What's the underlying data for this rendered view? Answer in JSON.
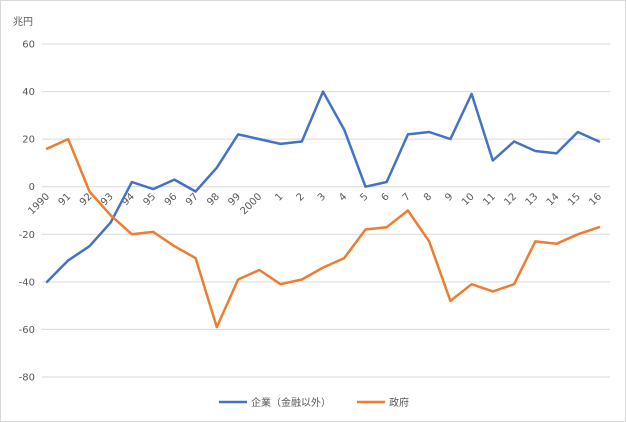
{
  "chart_data": {
    "type": "line",
    "ylabel": "兆円",
    "ylim": [
      -80,
      60
    ],
    "yticks": [
      60,
      40,
      20,
      0,
      -20,
      -40,
      -60,
      -80
    ],
    "grid": true,
    "legend_position": "bottom",
    "categories": [
      "1990",
      "91",
      "92",
      "93",
      "94",
      "95",
      "96",
      "97",
      "98",
      "99",
      "2000",
      "1",
      "2",
      "3",
      "4",
      "5",
      "6",
      "7",
      "8",
      "9",
      "10",
      "11",
      "12",
      "13",
      "14",
      "15",
      "16"
    ],
    "series": [
      {
        "name": "企業（金融以外）",
        "color": "#4472c4",
        "values": [
          -40,
          -31,
          -25,
          -15,
          2,
          -1,
          3,
          -2,
          8,
          22,
          20,
          18,
          19,
          40,
          24,
          0,
          2,
          22,
          23,
          20,
          39,
          11,
          19,
          15,
          14,
          23,
          19
        ]
      },
      {
        "name": "政府",
        "color": "#ed7d31",
        "values": [
          16,
          20,
          -2,
          -12,
          -20,
          -19,
          -25,
          -30,
          -59,
          -39,
          -35,
          -41,
          -39,
          -34,
          -30,
          -18,
          -17,
          -10,
          -23,
          -48,
          -41,
          -44,
          -41,
          -23,
          -24,
          -20,
          -17
        ]
      }
    ]
  }
}
